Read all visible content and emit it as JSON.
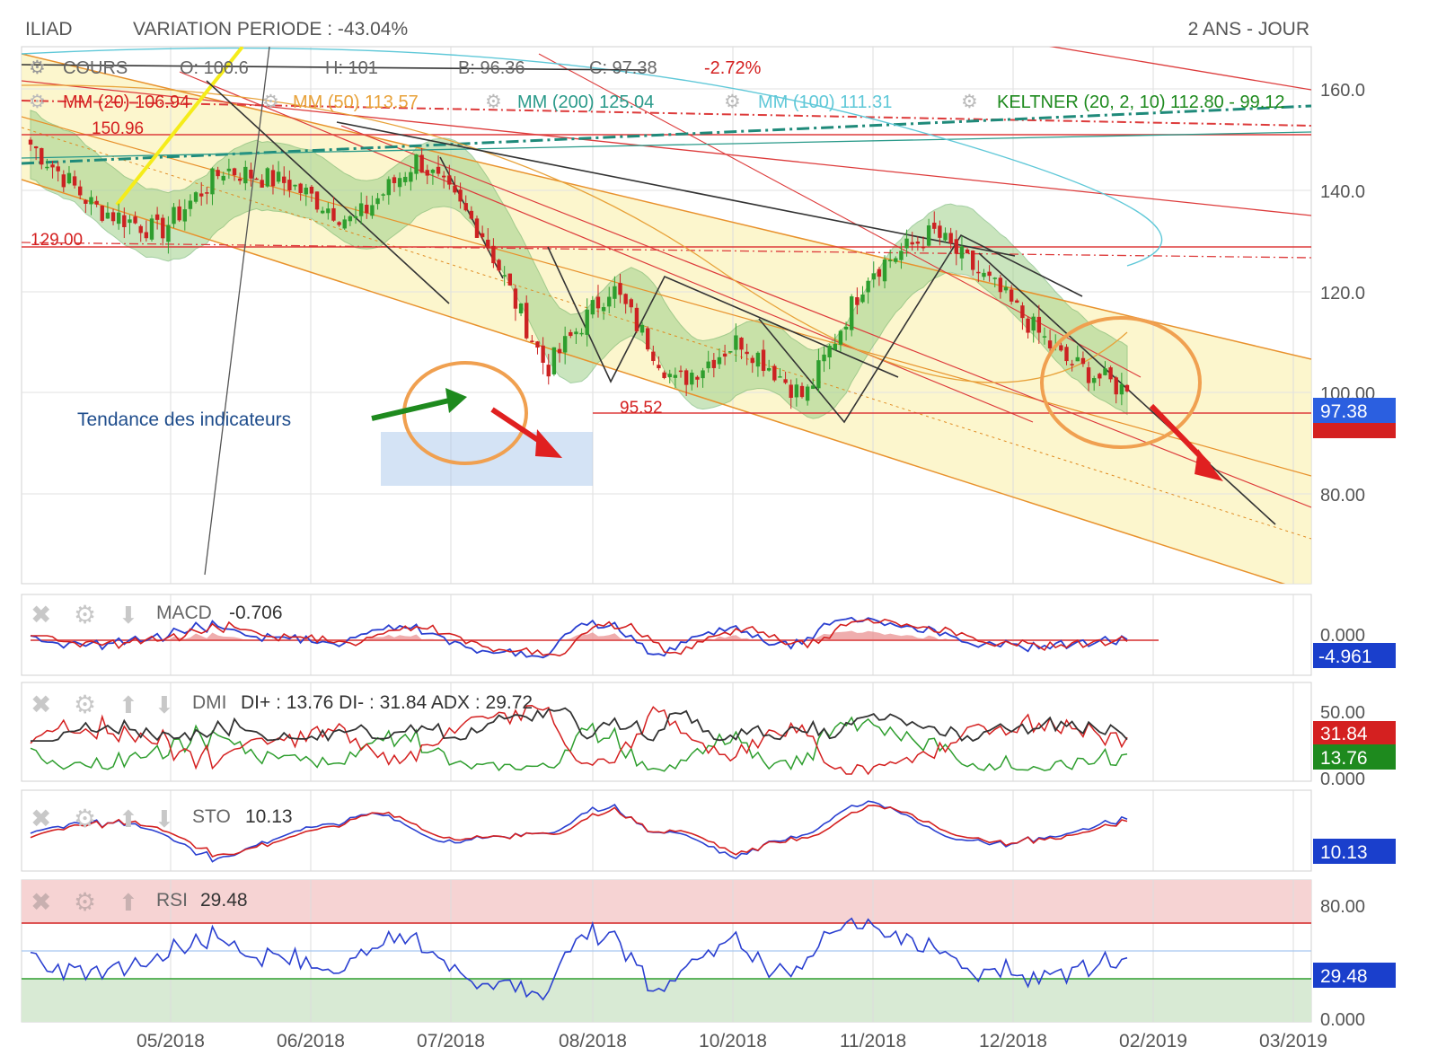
{
  "header": {
    "ticker": "ILIAD",
    "variation": "VARIATION PERIODE : -43.04%",
    "period": "2 ANS - JOUR"
  },
  "legend": {
    "cours": "COURS",
    "open": "O: 100.6",
    "high": "H: 101",
    "low": "B: 96.36",
    "close": "C: 97.38",
    "change": "-2.72%",
    "mm20": "MM (20) 106.94",
    "mm50": "MM (50) 113.57",
    "mm200": "MM (200) 125.04",
    "mm100": "MM (100) 111.31",
    "keltner": "KELTNER (20, 2, 10) 112.80 - 99.12"
  },
  "annotations": {
    "level_150": "150.96",
    "level_129": "129.00",
    "level_95": "95.52",
    "tendance": "Tendance des indicateurs"
  },
  "price_axis": {
    "ticks": [
      "160.0",
      "140.0",
      "120.0",
      "100.00",
      "80.00"
    ],
    "last_price": "97.38"
  },
  "macd": {
    "label": "MACD",
    "value": "-0.706",
    "tick": "0.000",
    "badge": "-4.961"
  },
  "dmi": {
    "label": "DMI",
    "text": "DI+ : 13.76 DI- : 31.84 ADX : 29.72",
    "tick_top": "50.00",
    "tick_bottom": "0.000",
    "badge_red": "31.84",
    "badge_green": "13.76"
  },
  "sto": {
    "label": "STO",
    "value": "10.13",
    "badge": "10.13"
  },
  "rsi": {
    "label": "RSI",
    "value": "29.48",
    "tick_top": "80.00",
    "tick_bottom": "0.000",
    "badge": "29.48"
  },
  "x_axis": [
    "05/2018",
    "06/2018",
    "07/2018",
    "08/2018",
    "10/2018",
    "11/2018",
    "12/2018",
    "02/2019",
    "03/2019"
  ],
  "colors": {
    "up": "#2e9e2e",
    "down": "#cc2222",
    "blue_badge": "#1a3fcc",
    "red_badge": "#d42020",
    "green_badge": "#1e8a1e",
    "keltner_fill": "#9fd08a",
    "channel_fill": "#fbf4c4",
    "mm50": "#e8a23a",
    "mm200": "#2a9a8a",
    "mm100": "#5fc8d8",
    "mm20": "#cc2222"
  },
  "chart_data": {
    "type": "candlestick",
    "title": "ILIAD",
    "ylim": [
      58,
      168
    ],
    "x_range": [
      "04/2018",
      "03/2019"
    ],
    "close_path": [
      [
        "04/2018",
        148
      ],
      [
        "05/2018",
        135
      ],
      [
        "05/2018",
        130
      ],
      [
        "06/2018",
        143
      ],
      [
        "06/2018",
        140
      ],
      [
        "07/2018",
        132
      ],
      [
        "07/2018",
        145
      ],
      [
        "08/2018",
        130
      ],
      [
        "08/2018",
        102
      ],
      [
        "09/2018",
        119
      ],
      [
        "10/2018",
        99
      ],
      [
        "10/2018",
        108
      ],
      [
        "11/2018",
        96
      ],
      [
        "11/2018",
        122
      ],
      [
        "12/2018",
        130
      ],
      [
        "12/2018",
        118
      ],
      [
        "01/2019",
        104
      ],
      [
        "01/2019",
        97.38
      ]
    ],
    "levels": [
      150.96,
      129.0,
      95.52
    ],
    "indicators": {
      "MM20": 106.94,
      "MM50": 113.57,
      "MM200": 125.04,
      "MM100": 111.31,
      "KELTNER_upper": 112.8,
      "KELTNER_lower": 99.12,
      "MACD": -0.706,
      "MACD_signal": -4.961,
      "DI_plus": 13.76,
      "DI_minus": 31.84,
      "ADX": 29.72,
      "STO": 10.13,
      "RSI": 29.48
    }
  }
}
